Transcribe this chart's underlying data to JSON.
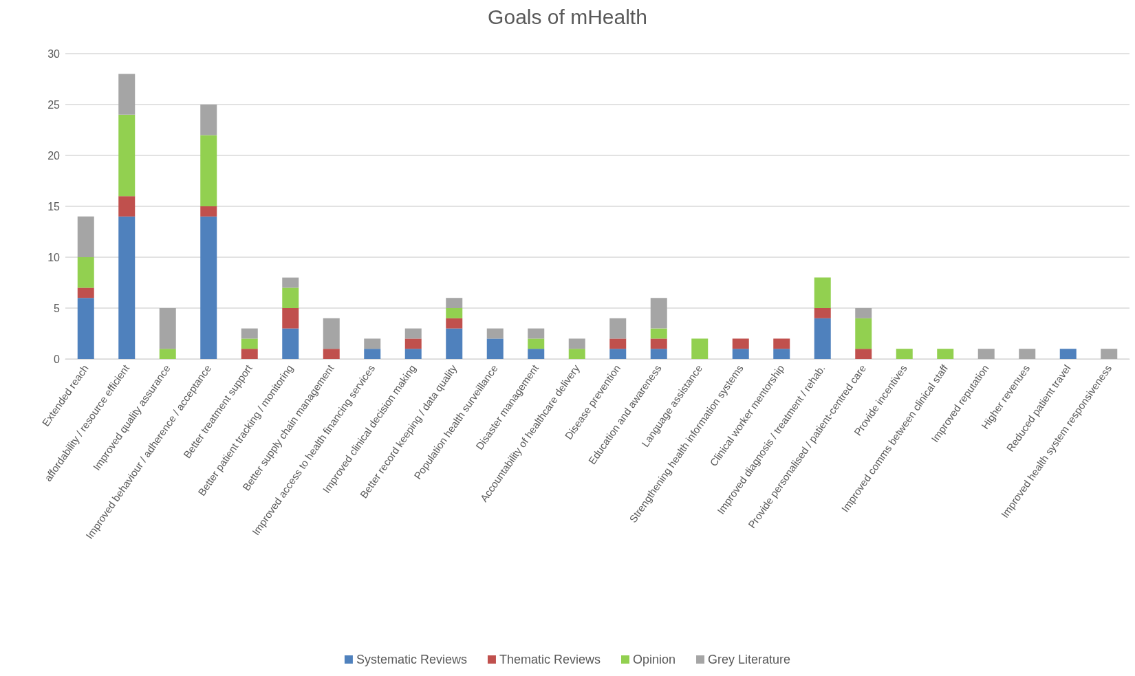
{
  "chart_data": {
    "type": "bar",
    "title": "Goals of mHealth",
    "stacked": true,
    "grid": "y",
    "legend": "bottom",
    "categories": [
      "Extended reach",
      "affordability / resource efficient",
      "Improved quality assurance",
      "Improved behaviour / adherence / acceptance",
      "Better treatment support",
      "Better patient tracking / monitoring",
      "Better supply chain management",
      "Improved access to health financing services",
      "Improved clinical decision making",
      "Better record keeping / data quality",
      "Population health surveillance",
      "Disaster management",
      "Accountability of healthcare delivery",
      "Disease prevention",
      "Education and awareness",
      "Language assistance",
      "Strengthening health information systems",
      "Clinical worker mentorship",
      "Improved diagnosis / treatment / rehab.",
      "Provide personalised / patient-centred care",
      "Provide incentives",
      "Improved comms between clinical staff",
      "Improved reputation",
      "Higher revenues",
      "Reduced patient travel",
      "Improved health system responsiveness"
    ],
    "ylim": [
      0,
      30
    ],
    "yticks": [
      0,
      5,
      10,
      15,
      20,
      25,
      30
    ],
    "series": [
      {
        "name": "Systematic Reviews",
        "color": "#4f81bd",
        "values": [
          6,
          14,
          0,
          14,
          0,
          3,
          0,
          1,
          1,
          3,
          2,
          1,
          0,
          1,
          1,
          0,
          1,
          1,
          4,
          0,
          0,
          0,
          0,
          0,
          1,
          0
        ]
      },
      {
        "name": "Thematic Reviews",
        "color": "#c0504d",
        "values": [
          1,
          2,
          0,
          1,
          1,
          2,
          1,
          0,
          1,
          1,
          0,
          0,
          0,
          1,
          1,
          0,
          1,
          1,
          1,
          1,
          0,
          0,
          0,
          0,
          0,
          0
        ]
      },
      {
        "name": "Opinion",
        "color": "#92d050",
        "values": [
          3,
          8,
          1,
          7,
          1,
          2,
          0,
          0,
          0,
          1,
          0,
          1,
          1,
          0,
          1,
          2,
          0,
          0,
          3,
          3,
          1,
          1,
          0,
          0,
          0,
          0
        ]
      },
      {
        "name": "Grey Literature",
        "color": "#a5a5a5",
        "values": [
          4,
          4,
          4,
          3,
          1,
          1,
          3,
          1,
          1,
          1,
          1,
          1,
          1,
          2,
          3,
          0,
          0,
          0,
          0,
          1,
          0,
          0,
          1,
          1,
          0,
          1
        ]
      }
    ]
  }
}
